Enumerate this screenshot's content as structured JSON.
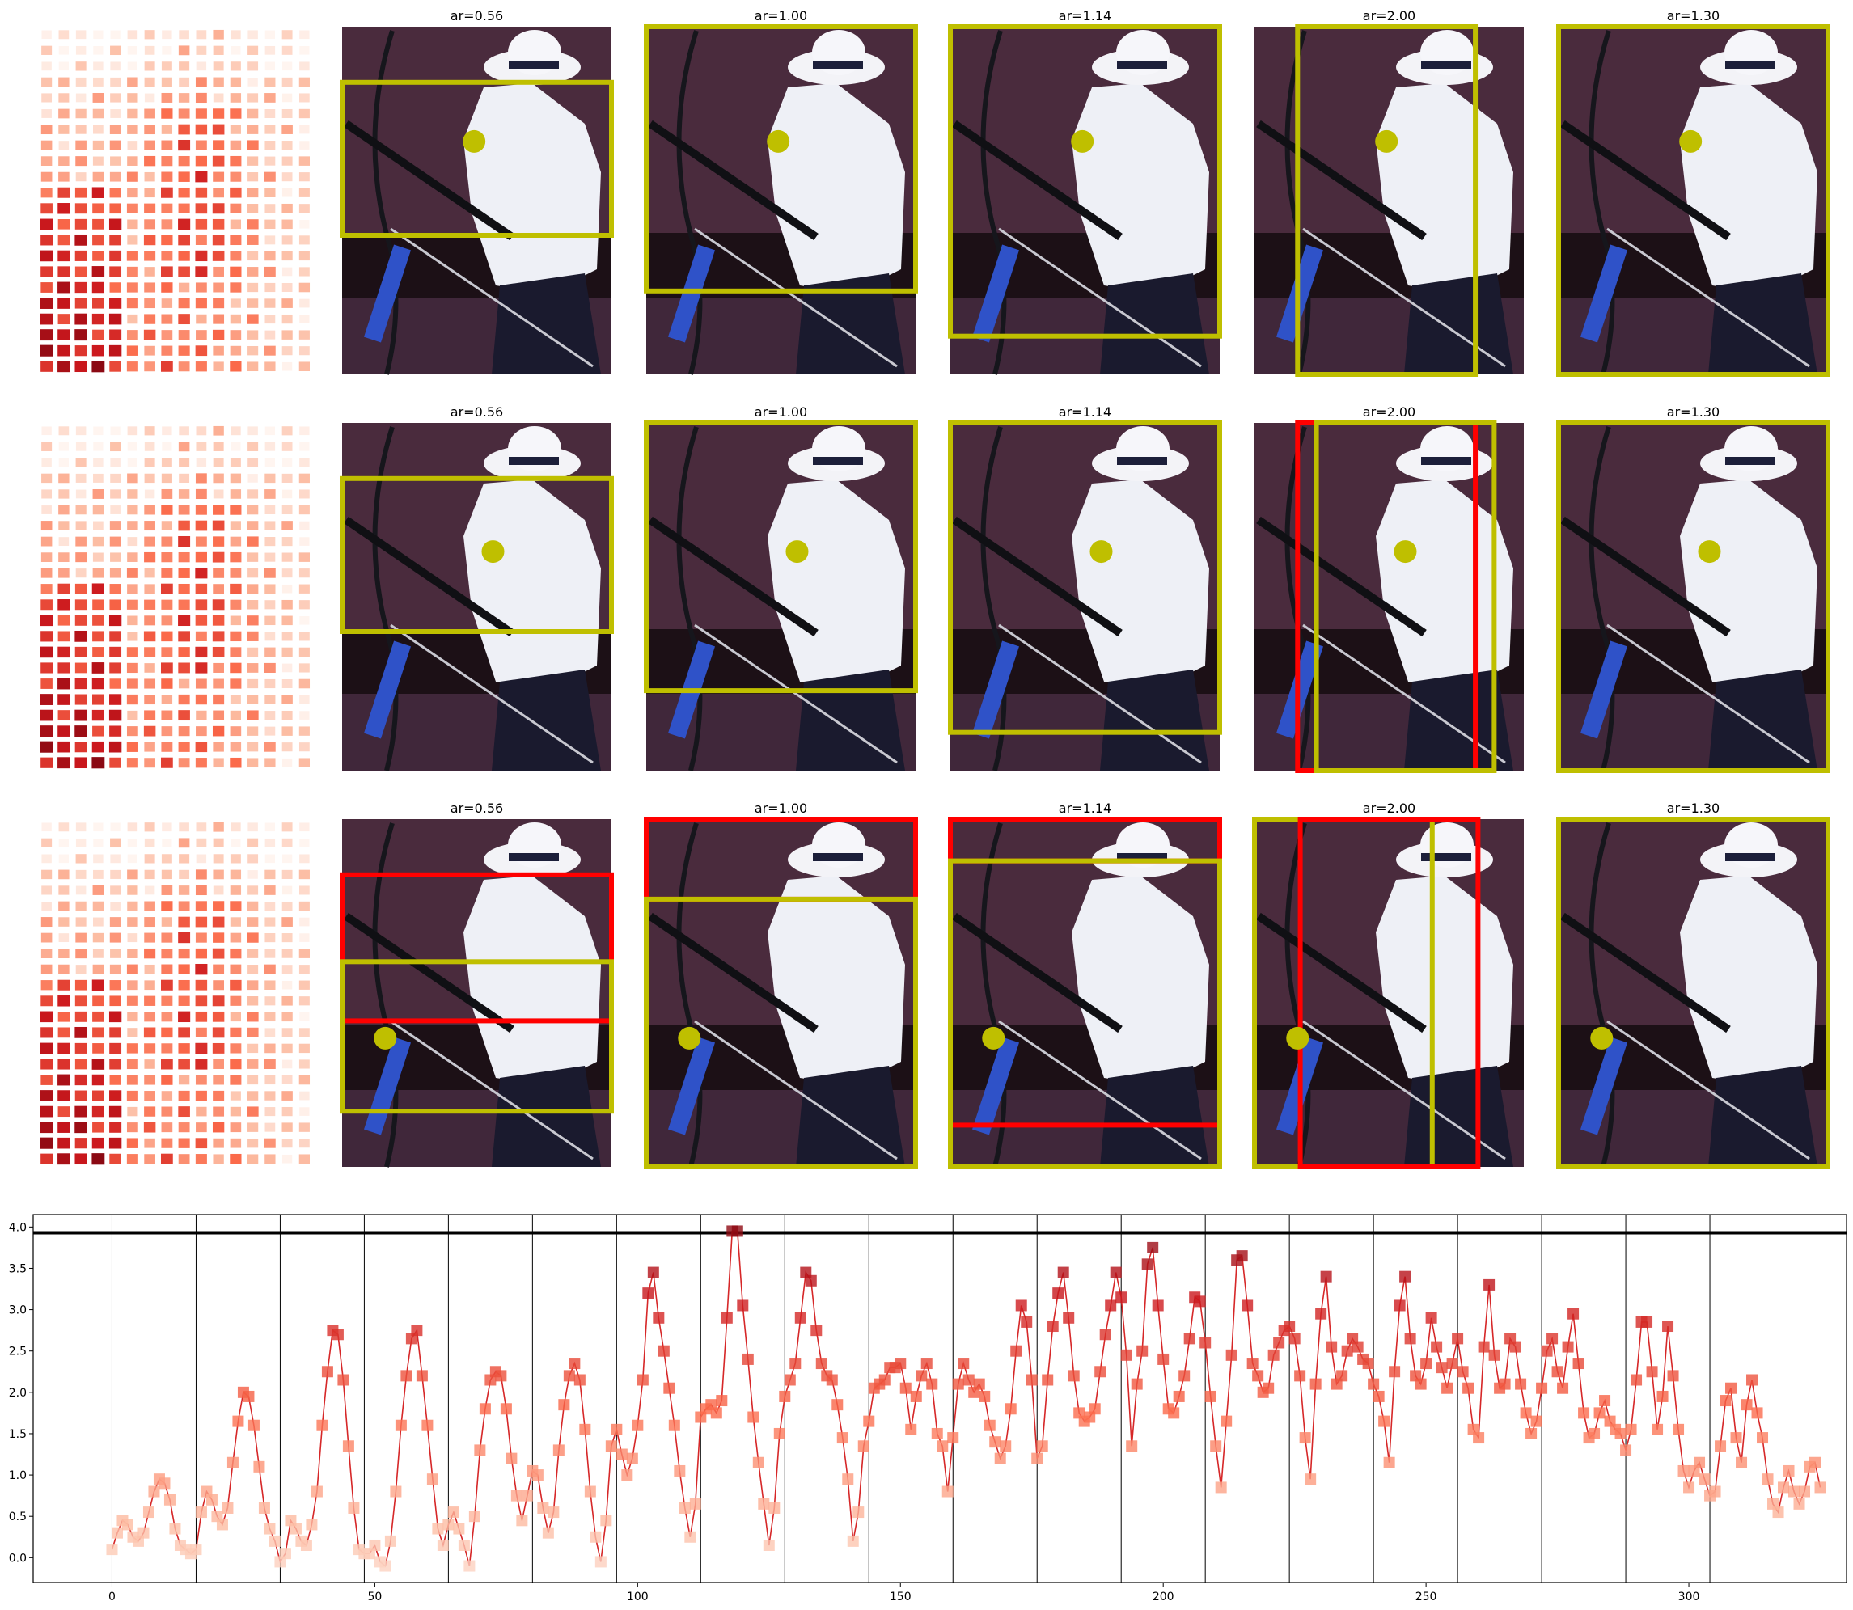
{
  "chart_data": [
    {
      "type": "heatmap",
      "colormap": "Reds",
      "rows": 22,
      "cols": 16,
      "description_values": "heatmap grid of squares, values rising toward the lower-left and the mid-right"
    },
    {
      "type": "image_grid",
      "row_count": 3,
      "panel_titles": [
        "ar=0.56",
        "ar=1.00",
        "ar=1.14",
        "ar=2.00",
        "ar=1.30"
      ],
      "colors": {
        "kept_box": "#bfbf00",
        "rejected_box": "#ff0000",
        "marker": "#bfbf00"
      }
    },
    {
      "type": "line",
      "marker": "square",
      "color": "#d62728",
      "xlim": [
        -15,
        330
      ],
      "ylim": [
        -0.3,
        4.15
      ],
      "xticks": [
        0,
        50,
        100,
        150,
        200,
        250,
        300
      ],
      "yticks": [
        "0.0",
        "0.5",
        "1.0",
        "1.5",
        "2.0",
        "2.5",
        "3.0",
        "3.5",
        "4.0"
      ],
      "hline": 3.93,
      "vlines": [
        0,
        16,
        32,
        48,
        64,
        80,
        96,
        112,
        128,
        144,
        160,
        176,
        192,
        208,
        224,
        240,
        256,
        272,
        288,
        304
      ],
      "x_start": 0,
      "values": [
        0.1,
        0.3,
        0.45,
        0.4,
        0.25,
        0.2,
        0.3,
        0.55,
        0.8,
        0.95,
        0.9,
        0.7,
        0.35,
        0.15,
        0.1,
        0.05,
        0.1,
        0.55,
        0.8,
        0.7,
        0.5,
        0.4,
        0.6,
        1.15,
        1.65,
        2.0,
        1.95,
        1.6,
        1.1,
        0.6,
        0.35,
        0.2,
        -0.05,
        0.05,
        0.45,
        0.35,
        0.2,
        0.15,
        0.4,
        0.8,
        1.6,
        2.25,
        2.75,
        2.7,
        2.15,
        1.35,
        0.6,
        0.1,
        0.05,
        0.05,
        0.15,
        -0.05,
        -0.1,
        0.2,
        0.8,
        1.6,
        2.2,
        2.65,
        2.75,
        2.2,
        1.6,
        0.95,
        0.35,
        0.15,
        0.4,
        0.55,
        0.35,
        0.15,
        -0.1,
        0.5,
        1.3,
        1.8,
        2.15,
        2.25,
        2.2,
        1.8,
        1.2,
        0.75,
        0.45,
        0.75,
        1.05,
        1.0,
        0.6,
        0.3,
        0.55,
        1.3,
        1.85,
        2.2,
        2.35,
        2.15,
        1.55,
        0.8,
        0.25,
        -0.05,
        0.45,
        1.35,
        1.55,
        1.25,
        1.0,
        1.2,
        1.6,
        2.15,
        3.2,
        3.45,
        2.9,
        2.5,
        2.05,
        1.6,
        1.05,
        0.6,
        0.25,
        0.65,
        1.7,
        1.8,
        1.85,
        1.75,
        1.9,
        2.9,
        3.95,
        3.95,
        3.05,
        2.4,
        1.7,
        1.15,
        0.65,
        0.15,
        0.6,
        1.5,
        1.95,
        2.15,
        2.35,
        2.9,
        3.45,
        3.35,
        2.75,
        2.35,
        2.2,
        2.15,
        1.85,
        1.45,
        0.95,
        0.2,
        0.55,
        1.35,
        1.65,
        2.05,
        2.1,
        2.15,
        2.3,
        2.3,
        2.35,
        2.05,
        1.55,
        1.95,
        2.2,
        2.35,
        2.1,
        1.5,
        1.35,
        0.8,
        1.45,
        2.1,
        2.35,
        2.15,
        2.0,
        2.1,
        1.95,
        1.6,
        1.4,
        1.2,
        1.35,
        1.8,
        2.5,
        3.05,
        2.85,
        2.15,
        1.2,
        1.35,
        2.15,
        2.8,
        3.2,
        3.45,
        2.9,
        2.2,
        1.75,
        1.65,
        1.7,
        1.8,
        2.25,
        2.7,
        3.05,
        3.45,
        3.15,
        2.45,
        1.35,
        2.1,
        2.5,
        3.55,
        3.75,
        3.05,
        2.4,
        1.8,
        1.75,
        1.95,
        2.2,
        2.65,
        3.15,
        3.1,
        2.6,
        1.95,
        1.35,
        0.85,
        1.65,
        2.45,
        3.6,
        3.65,
        3.05,
        2.35,
        2.2,
        2.0,
        2.05,
        2.45,
        2.6,
        2.75,
        2.8,
        2.65,
        2.2,
        1.45,
        0.95,
        2.1,
        2.95,
        3.4,
        2.55,
        2.1,
        2.2,
        2.5,
        2.65,
        2.55,
        2.4,
        2.35,
        2.1,
        1.95,
        1.65,
        1.15,
        2.25,
        3.05,
        3.4,
        2.65,
        2.2,
        2.1,
        2.35,
        2.9,
        2.55,
        2.3,
        2.05,
        2.35,
        2.65,
        2.25,
        2.05,
        1.55,
        1.45,
        2.55,
        3.3,
        2.45,
        2.05,
        2.1,
        2.65,
        2.55,
        2.1,
        1.75,
        1.5,
        1.65,
        2.05,
        2.5,
        2.65,
        2.25,
        2.05,
        2.55,
        2.95,
        2.35,
        1.75,
        1.45,
        1.5,
        1.75,
        1.9,
        1.65,
        1.55,
        1.5,
        1.3,
        1.55,
        2.15,
        2.85,
        2.85,
        2.25,
        1.55,
        1.95,
        2.8,
        2.2,
        1.55,
        1.05,
        0.85,
        1.05,
        1.15,
        0.95,
        0.75,
        0.8,
        1.35,
        1.9,
        2.05,
        1.45,
        1.15,
        1.85,
        2.15,
        1.75,
        1.45,
        0.95,
        0.65,
        0.55,
        0.85,
        1.05,
        0.8,
        0.65,
        0.8,
        1.1,
        1.15,
        0.85
      ]
    }
  ]
}
